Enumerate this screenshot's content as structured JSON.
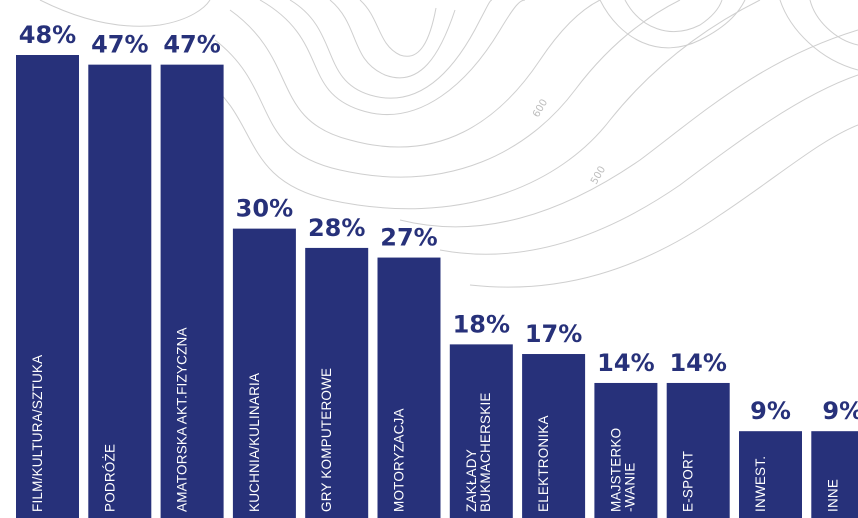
{
  "chart_data": {
    "type": "bar",
    "categories": [
      "FILM/KULTURA/SZTUKA",
      "PODRÓŻE",
      "AMATORSKA AKT.FIZYCZNA",
      "KUCHNIA/KULINARIA",
      "GRY KOMPUTEROWE",
      "MOTORYZACJA",
      "ZAKŁADY|BUKMACHERSKIE",
      "ELEKTRONIKA",
      "MAJSTERKO|-WANIE",
      "E-SPORT",
      "INWEST.",
      "INNE"
    ],
    "values": [
      48,
      47,
      47,
      30,
      28,
      27,
      18,
      17,
      14,
      14,
      9,
      9
    ],
    "value_labels": [
      "48%",
      "47%",
      "47%",
      "30%",
      "28%",
      "27%",
      "18%",
      "17%",
      "14%",
      "14%",
      "9%",
      "9%"
    ],
    "title": "",
    "xlabel": "",
    "ylabel": "",
    "ylim": [
      0,
      48
    ],
    "grid": false,
    "legend": "none"
  },
  "colors": {
    "bar": "#27317a",
    "value_label": "#27317a",
    "category_label": "#ffffff",
    "background": "#ffffff",
    "contour": "#cfcfcf"
  },
  "background": {
    "contour_labels": [
      "600",
      "500"
    ]
  }
}
